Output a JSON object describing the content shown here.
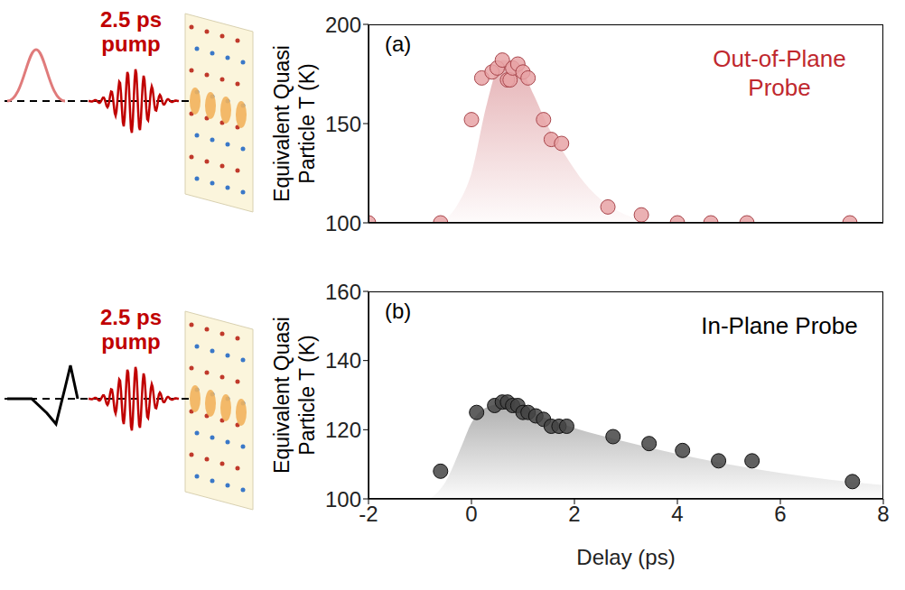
{
  "schematic_labels": [
    "2.5 ps pump",
    "2.5 ps pump"
  ],
  "chart_data": [
    {
      "type": "scatter",
      "title": "(a)",
      "annotation": "Out-of-Plane Probe",
      "annotation_color": "#c0282e",
      "ylabel": "Equivalent Quasi Particle T (K)",
      "xlim": [
        -2,
        8
      ],
      "xticks": [
        -2,
        0,
        2,
        4,
        6,
        8
      ],
      "ylim": [
        100,
        200
      ],
      "yticks": [
        100,
        150,
        200
      ],
      "tick_labels": "y",
      "series": [
        {
          "type": "scatter",
          "color": "#e8a3a6",
          "marker": "circle",
          "x": [
            -2,
            -0.6,
            0,
            0.2,
            0.4,
            0.5,
            0.6,
            0.7,
            0.75,
            0.8,
            0.9,
            1.0,
            1.1,
            1.4,
            1.55,
            1.75,
            2.65,
            3.3,
            4,
            4.65,
            5.35,
            7.35
          ],
          "values": [
            100,
            100,
            152,
            173,
            176,
            178,
            182,
            172,
            172,
            178,
            180,
            176,
            173,
            152,
            142,
            140,
            108,
            104,
            100,
            100,
            100,
            100
          ]
        },
        {
          "type": "area",
          "color": "#d47f84",
          "x": [
            -0.6,
            -0.3,
            0,
            0.3,
            0.6,
            0.9,
            1.2,
            1.5,
            1.8,
            2.2,
            2.6,
            3,
            3.5,
            4,
            8
          ],
          "values": [
            100,
            108,
            125,
            160,
            182,
            180,
            165,
            148,
            135,
            120,
            110,
            104,
            101,
            100,
            100
          ]
        }
      ]
    },
    {
      "type": "scatter",
      "title": "(b)",
      "annotation": "In-Plane Probe",
      "annotation_color": "#000000",
      "ylabel": "Equivalent Quasi Particle T (K)",
      "xlabel": "Delay (ps)",
      "xlim": [
        -2,
        8
      ],
      "xticks": [
        -2,
        0,
        2,
        4,
        6,
        8
      ],
      "ylim": [
        100,
        160
      ],
      "yticks": [
        100,
        120,
        140,
        160
      ],
      "tick_labels": true,
      "series": [
        {
          "type": "scatter",
          "color": "#444444",
          "marker": "circle",
          "x": [
            -0.6,
            0.1,
            0.45,
            0.6,
            0.7,
            0.8,
            0.9,
            1.0,
            1.1,
            1.25,
            1.4,
            1.55,
            1.7,
            1.85,
            2.75,
            3.45,
            4.1,
            4.8,
            5.45,
            7.4
          ],
          "values": [
            108,
            125,
            127,
            128,
            128,
            127,
            127,
            125,
            125,
            124,
            123,
            121,
            121,
            121,
            118,
            116,
            114,
            111,
            111,
            105
          ]
        },
        {
          "type": "area",
          "color": "#7a7a7a",
          "x": [
            -0.8,
            -0.5,
            -0.2,
            0,
            0.3,
            0.6,
            1,
            1.5,
            2,
            3,
            4,
            5,
            6,
            7,
            8
          ],
          "values": [
            100,
            105,
            115,
            122,
            126.5,
            127.5,
            126,
            123,
            120.5,
            116.5,
            113,
            110,
            107.5,
            105.5,
            104
          ]
        }
      ]
    }
  ]
}
